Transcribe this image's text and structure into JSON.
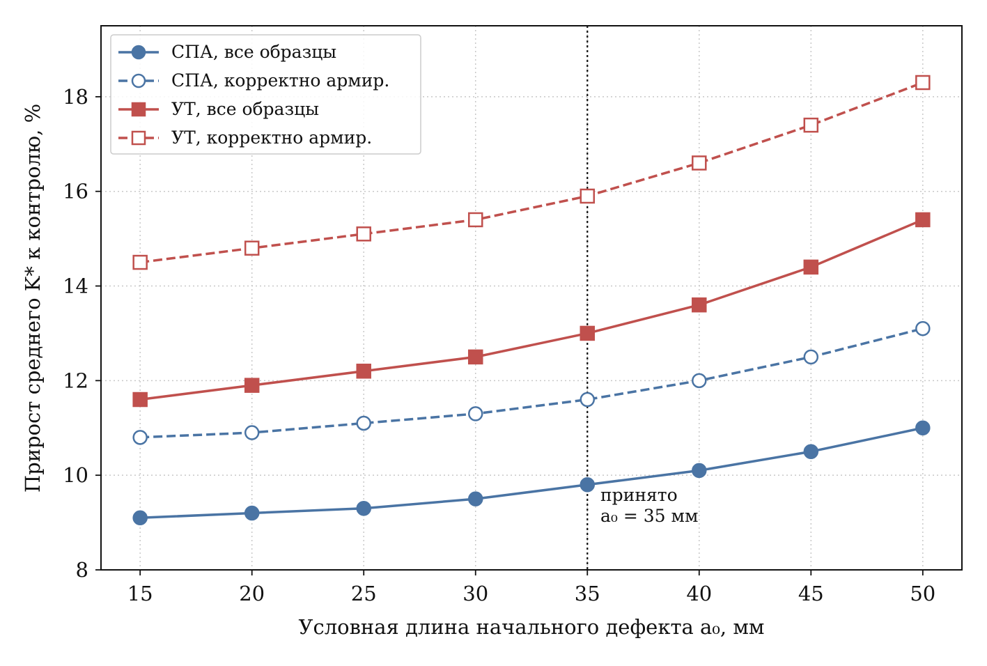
{
  "chart_data": {
    "type": "line",
    "title": "",
    "xlabel": "Условная длина начального дефекта a₀, мм",
    "ylabel": "Прирост среднего K* к контролю, %",
    "x": [
      15,
      20,
      25,
      30,
      35,
      40,
      45,
      50
    ],
    "xlim": [
      13.25,
      51.75
    ],
    "ylim": [
      8,
      19.5
    ],
    "xticks": [
      "15",
      "20",
      "25",
      "30",
      "35",
      "40",
      "45",
      "50"
    ],
    "yticks": [
      "8",
      "10",
      "12",
      "14",
      "16",
      "18"
    ],
    "grid": true,
    "legend_position": "top-left",
    "series": [
      {
        "name": "СПА, все образцы",
        "values": [
          9.1,
          9.2,
          9.3,
          9.5,
          9.8,
          10.1,
          10.5,
          11.0
        ],
        "color": "#4a74a4",
        "line_style": "solid",
        "marker": "circle",
        "marker_fill": "filled"
      },
      {
        "name": "СПА, корректно армир.",
        "values": [
          10.8,
          10.9,
          11.1,
          11.3,
          11.6,
          12.0,
          12.5,
          13.1
        ],
        "color": "#4a74a4",
        "line_style": "dashed",
        "marker": "circle",
        "marker_fill": "hollow"
      },
      {
        "name": "УТ, все образцы",
        "values": [
          11.6,
          11.9,
          12.2,
          12.5,
          13.0,
          13.6,
          14.4,
          15.4
        ],
        "color": "#c0504d",
        "line_style": "solid",
        "marker": "square",
        "marker_fill": "filled"
      },
      {
        "name": "УТ, корректно армир.",
        "values": [
          14.5,
          14.8,
          15.1,
          15.4,
          15.9,
          16.6,
          17.4,
          18.3
        ],
        "color": "#c0504d",
        "line_style": "dashed",
        "marker": "square",
        "marker_fill": "hollow"
      }
    ],
    "vertical_line": {
      "x": 35,
      "style": "dotted",
      "color": "#111111"
    },
    "annotation": {
      "lines": [
        "принято",
        "a₀ = 35 мм"
      ],
      "x": 35,
      "y": 9.8
    }
  }
}
